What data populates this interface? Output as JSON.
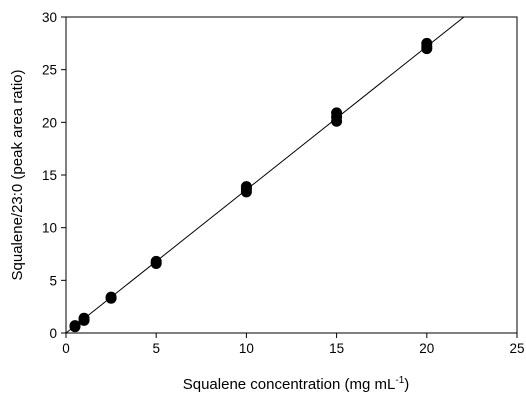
{
  "chart_data": {
    "type": "scatter",
    "xlabel": "Squalene concentration (mg mL",
    "xlabel_superscript": "-1",
    "xlabel_close": ")",
    "ylabel": "Squalene/23:0 (peak area ratio)",
    "xlim": [
      0,
      25
    ],
    "ylim": [
      0,
      30
    ],
    "x_ticks": [
      0,
      5,
      10,
      15,
      20,
      25
    ],
    "y_ticks": [
      0,
      5,
      10,
      15,
      20,
      25,
      30
    ],
    "grid": false,
    "series": [
      {
        "points": [
          {
            "x": 0.5,
            "y": 0.6
          },
          {
            "x": 0.5,
            "y": 0.7
          },
          {
            "x": 1,
            "y": 1.2
          },
          {
            "x": 1,
            "y": 1.4
          },
          {
            "x": 2.5,
            "y": 3.3
          },
          {
            "x": 2.5,
            "y": 3.4
          },
          {
            "x": 5,
            "y": 6.6
          },
          {
            "x": 5,
            "y": 6.8
          },
          {
            "x": 10,
            "y": 13.4
          },
          {
            "x": 10,
            "y": 13.7
          },
          {
            "x": 10,
            "y": 13.9
          },
          {
            "x": 15,
            "y": 20.1
          },
          {
            "x": 15,
            "y": 20.5
          },
          {
            "x": 15,
            "y": 20.9
          },
          {
            "x": 20,
            "y": 27.0
          },
          {
            "x": 20,
            "y": 27.2
          },
          {
            "x": 20,
            "y": 27.5
          }
        ],
        "marker_color": "#000000"
      }
    ],
    "fit_line": {
      "type": "linear",
      "slope": 1.36,
      "intercept": 0,
      "color": "#000000"
    }
  }
}
